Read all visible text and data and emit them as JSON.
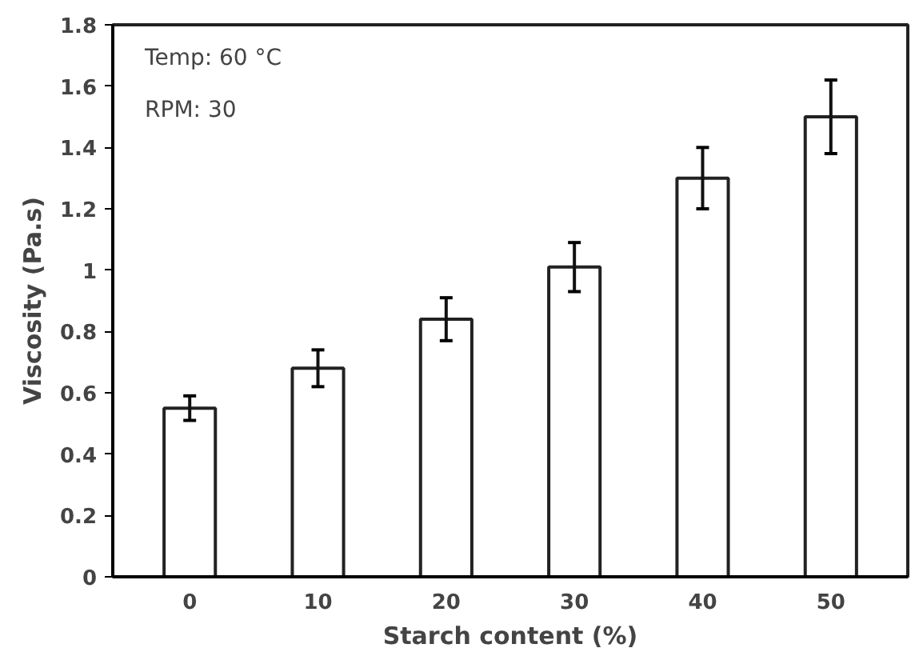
{
  "chart_data": {
    "type": "bar",
    "xlabel": "Starch content (%)",
    "ylabel": "Viscosity (Pa.s)",
    "categories": [
      "0",
      "10",
      "20",
      "30",
      "40",
      "50"
    ],
    "values": [
      0.55,
      0.68,
      0.84,
      1.01,
      1.3,
      1.5
    ],
    "errors": [
      0.04,
      0.06,
      0.07,
      0.08,
      0.1,
      0.12
    ],
    "color": "#ffffff",
    "ylim": [
      0,
      1.8
    ],
    "yticks": [
      0,
      0.2,
      0.4,
      0.6,
      0.8,
      1,
      1.2,
      1.4,
      1.6,
      1.8
    ],
    "annotations": [
      "Temp: 60 °C",
      "RPM: 30"
    ],
    "grid": false
  }
}
